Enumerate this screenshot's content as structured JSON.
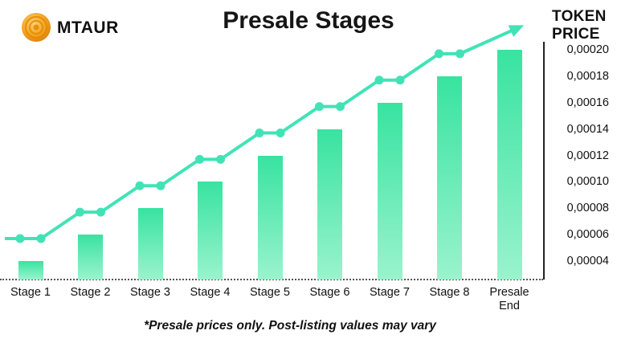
{
  "header": {
    "brand": "MTAUR",
    "title": "Presale Stages",
    "price_label_line1": "TOKEN",
    "price_label_line2": "PRICE"
  },
  "footnote": "*Presale prices only. Post-listing values may vary",
  "colors": {
    "bar_gradient_top": "#38e3a0",
    "bar_gradient_bottom": "#9af3cd",
    "trend_line": "#41e3b6",
    "logo_gold": "#f5a623",
    "text": "#111111",
    "background": "#ffffff"
  },
  "chart_data": {
    "type": "bar",
    "title": "Presale Stages",
    "ylabel": "TOKEN PRICE",
    "categories": [
      "Stage 1",
      "Stage 2",
      "Stage 3",
      "Stage 4",
      "Stage 5",
      "Stage 6",
      "Stage 7",
      "Stage 8",
      "Presale End"
    ],
    "values": [
      4e-05,
      6e-05,
      8e-05,
      0.0001,
      0.00012,
      0.00014,
      0.00016,
      0.00018,
      0.0002
    ],
    "y_tick_labels": [
      "0,00020",
      "0,00018",
      "0,00016",
      "0,00014",
      "0,00012",
      "0,00010",
      "0,00008",
      "0,00006",
      "0,00004"
    ],
    "ylim": [
      3e-05,
      0.00021
    ],
    "grid": false,
    "legend": false,
    "trend_line": {
      "style": "rising-line-with-dot-pairs-per-stage-and-arrowhead",
      "covers_categories": [
        "Stage 1",
        "Stage 2",
        "Stage 3",
        "Stage 4",
        "Stage 5",
        "Stage 6",
        "Stage 7",
        "Stage 8"
      ]
    }
  }
}
